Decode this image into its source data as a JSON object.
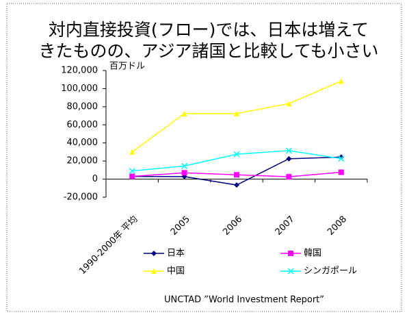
{
  "chart_data": {
    "type": "line",
    "title": [
      "対内直接投資(フロー)では、日本は増えて",
      "きたものの、アジア諸国と比較しても小さい"
    ],
    "y_unit": "百万ドル",
    "source": "UNCTAD ”World Investment Report”",
    "categories": [
      "1990-2000年 平均",
      "2005",
      "2006",
      "2007",
      "2008"
    ],
    "series": [
      {
        "name": "日本",
        "color": "#000080",
        "marker": "diamond",
        "values": [
          3000,
          2800,
          -6500,
          22500,
          24400
        ]
      },
      {
        "name": "韓国",
        "color": "#ff00ff",
        "marker": "square",
        "values": [
          3000,
          7000,
          4800,
          2600,
          7600
        ]
      },
      {
        "name": "中国",
        "color": "#ffff00",
        "marker": "triangle",
        "values": [
          30000,
          72400,
          72400,
          83500,
          108300
        ]
      },
      {
        "name": "シンガポール",
        "color": "#00ffff",
        "marker": "x",
        "values": [
          9000,
          14500,
          27500,
          31500,
          22700
        ]
      }
    ],
    "ylim": [
      -20000,
      120000
    ],
    "yticks": [
      {
        "value": -20000,
        "label": "-20,000"
      },
      0,
      {
        "value": 20000,
        "label": "20,000"
      },
      {
        "value": 40000,
        "label": "40,000"
      },
      {
        "value": 60000,
        "label": "60,000"
      },
      {
        "value": 80000,
        "label": "80,000"
      },
      {
        "value": 100000,
        "label": "100,000"
      },
      {
        "value": 120000,
        "label": "120,000"
      }
    ],
    "grid": false
  }
}
